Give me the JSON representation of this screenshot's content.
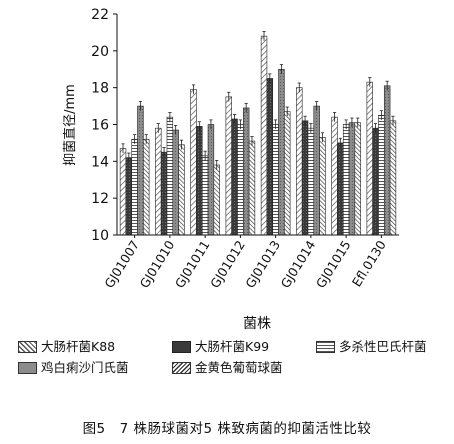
{
  "chart_data": {
    "type": "bar",
    "ylabel": "抑菌直径/mm",
    "xlabel": "菌株",
    "ylim": [
      10,
      22
    ],
    "yticks": [
      10,
      12,
      14,
      16,
      18,
      20,
      22
    ],
    "grid": false,
    "legend_position": "bottom",
    "categories": [
      "GJ01007",
      "GJ01010",
      "GJ01011",
      "GJ01012",
      "GJ01013",
      "GJ01014",
      "GJ01015",
      "Efl.0130"
    ],
    "series": [
      {
        "name": "大肠杆菌K88",
        "pattern": "diag-light",
        "values": [
          14.7,
          15.8,
          17.9,
          17.5,
          20.8,
          18.0,
          16.4,
          18.3
        ]
      },
      {
        "name": "大肠杆菌K99",
        "pattern": "dark",
        "values": [
          14.2,
          14.5,
          15.9,
          16.3,
          18.5,
          16.2,
          15.0,
          15.8
        ]
      },
      {
        "name": "多杀性巴氏杆菌",
        "pattern": "horizontal",
        "values": [
          15.2,
          16.4,
          14.3,
          16.0,
          16.0,
          15.8,
          16.0,
          16.5
        ]
      },
      {
        "name": "鸡白痢沙门氏菌",
        "pattern": "medium",
        "values": [
          17.0,
          15.7,
          16.0,
          16.9,
          19.0,
          17.0,
          16.1,
          18.1
        ]
      },
      {
        "name": "金黄色葡萄球菌",
        "pattern": "diag-dense",
        "values": [
          15.2,
          14.9,
          13.8,
          15.1,
          16.7,
          15.3,
          16.1,
          16.2
        ]
      }
    ]
  },
  "caption": "图5　7 株肠球菌对5 株致病菌的抑菌活性比较"
}
